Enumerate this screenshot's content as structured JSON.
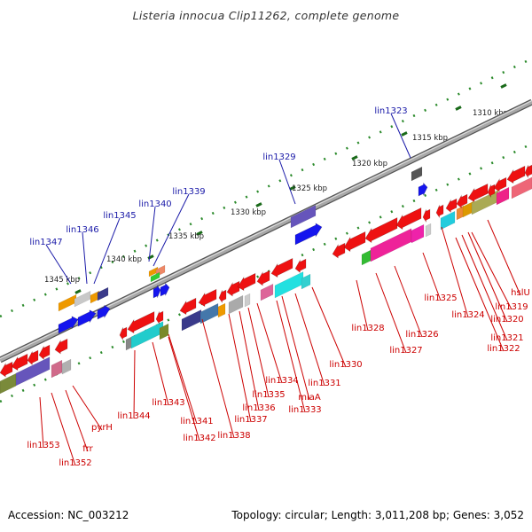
{
  "title": "Listeria innocua Clip11262, complete genome",
  "footer": {
    "accession": "Accession: NC_003212",
    "summary": "Topology: circular; Length: 3,011,208 bp; Genes: 3,052"
  },
  "colors": {
    "backbone": "#8a8a8a",
    "scale_dots": "#2a8a2a",
    "upper_label": "#1a1aa8",
    "lower_label": "#cc0000",
    "forward_gene": "#1515ee",
    "reverse_gene": "#ee1111"
  },
  "scale_ticks": [
    "1310 kbp",
    "1315 kbp",
    "1320 kbp",
    "1325 kbp",
    "1330 kbp",
    "1335 kbp",
    "1340 kbp",
    "1345 kbp"
  ],
  "upper_labels": [
    "lin1323",
    "lin1329",
    "lin1339",
    "lin1340",
    "lin1345",
    "lin1346",
    "lin1347"
  ],
  "lower_labels": [
    "hslU",
    "lin1319",
    "lin1320",
    "lin1321",
    "lin1322",
    "lin1324",
    "lin1325",
    "lin1326",
    "lin1327",
    "lin1328",
    "lin1330",
    "lin1331",
    "miaA",
    "lin1333",
    "lin1334",
    "lin1335",
    "lin1336",
    "lin1337",
    "lin1338",
    "lin1341",
    "lin1342",
    "lin1343",
    "lin1344",
    "pyrH",
    "frr",
    "lin1352",
    "lin1353"
  ]
}
